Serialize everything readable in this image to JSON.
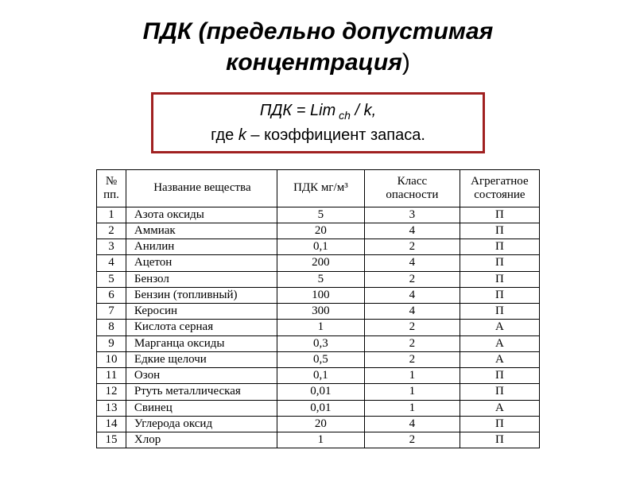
{
  "title_part1": "ПДК (предельно допустимая",
  "title_part2": "концентрация",
  "title_closing": ")",
  "formula": {
    "line1_prefix": "ПДК = Lim",
    "line1_sub": " ch",
    "line1_suffix": " / k,",
    "line2_prefix": "где ",
    "line2_k": "k",
    "line2_suffix": " – коэффициент запаса."
  },
  "table": {
    "headers": {
      "num": "№ пп.",
      "name": "Название вещества",
      "pdk": "ПДК мг/м³",
      "class": "Класс опасности",
      "state": "Агрегатное состояние"
    },
    "rows": [
      {
        "num": "1",
        "name": "Азота оксиды",
        "pdk": "5",
        "class": "3",
        "state": "П"
      },
      {
        "num": "2",
        "name": "Аммиак",
        "pdk": "20",
        "class": "4",
        "state": "П"
      },
      {
        "num": "3",
        "name": "Анилин",
        "pdk": "0,1",
        "class": "2",
        "state": "П"
      },
      {
        "num": "4",
        "name": "Ацетон",
        "pdk": "200",
        "class": "4",
        "state": "П"
      },
      {
        "num": "5",
        "name": "Бензол",
        "pdk": "5",
        "class": "2",
        "state": "П"
      },
      {
        "num": "6",
        "name": "Бензин (топливный)",
        "pdk": "100",
        "class": "4",
        "state": "П"
      },
      {
        "num": "7",
        "name": "Керосин",
        "pdk": "300",
        "class": "4",
        "state": "П"
      },
      {
        "num": "8",
        "name": "Кислота серная",
        "pdk": "1",
        "class": "2",
        "state": "А"
      },
      {
        "num": "9",
        "name": "Марганца оксиды",
        "pdk": "0,3",
        "class": "2",
        "state": "А"
      },
      {
        "num": "10",
        "name": "Едкие щелочи",
        "pdk": "0,5",
        "class": "2",
        "state": "А"
      },
      {
        "num": "11",
        "name": "Озон",
        "pdk": "0,1",
        "class": "1",
        "state": "П"
      },
      {
        "num": "12",
        "name": "Ртуть металлическая",
        "pdk": "0,01",
        "class": "1",
        "state": "П"
      },
      {
        "num": "13",
        "name": "Свинец",
        "pdk": "0,01",
        "class": "1",
        "state": "А"
      },
      {
        "num": "14",
        "name": "Углерода оксид",
        "pdk": "20",
        "class": "4",
        "state": "П"
      },
      {
        "num": "15",
        "name": "Хлор",
        "pdk": "1",
        "class": "2",
        "state": "П"
      }
    ]
  },
  "colors": {
    "formula_border": "#a02020",
    "text": "#000000",
    "background": "#ffffff"
  }
}
